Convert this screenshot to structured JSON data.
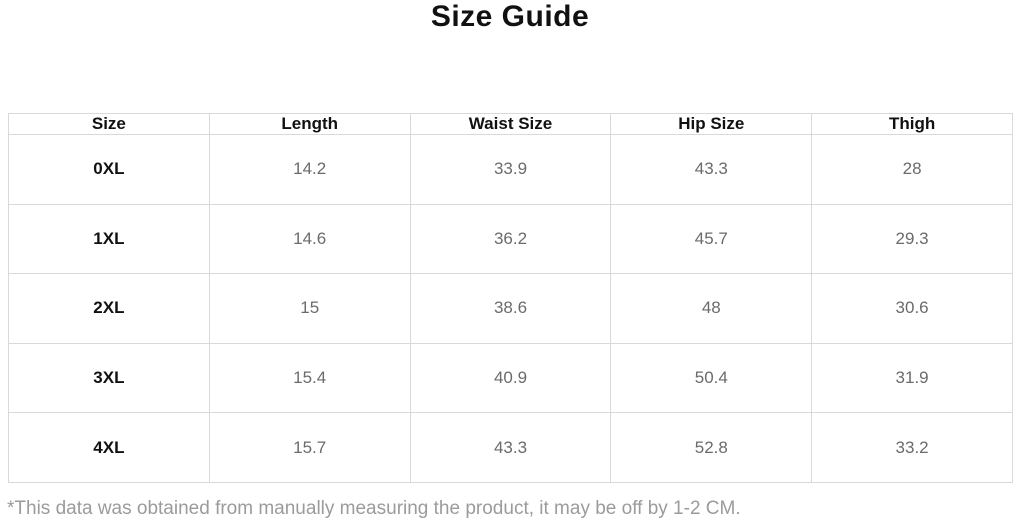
{
  "page": {
    "title": "Size Guide",
    "footnote": "*This data was obtained from manually measuring the product, it may be off by 1-2 CM."
  },
  "table": {
    "headers": [
      "Size",
      "Length",
      "Waist Size",
      "Hip Size",
      "Thigh"
    ],
    "rows": [
      {
        "size": "0XL",
        "values": [
          "14.2",
          "33.9",
          "43.3",
          "28"
        ]
      },
      {
        "size": "1XL",
        "values": [
          "14.6",
          "36.2",
          "45.7",
          "29.3"
        ]
      },
      {
        "size": "2XL",
        "values": [
          "15",
          "38.6",
          "48",
          "30.6"
        ]
      },
      {
        "size": "3XL",
        "values": [
          "15.4",
          "40.9",
          "50.4",
          "31.9"
        ]
      },
      {
        "size": "4XL",
        "values": [
          "15.7",
          "43.3",
          "52.8",
          "33.2"
        ]
      }
    ]
  },
  "colors": {
    "title_text": "#111111",
    "header_text": "#111111",
    "value_text": "#6b6b6b",
    "border": "#d9d9d9",
    "footnote_text": "#9b9b9b",
    "background": "#ffffff"
  },
  "chart_data": {
    "type": "table",
    "title": "Size Guide",
    "columns": [
      "Size",
      "Length",
      "Waist Size",
      "Hip Size",
      "Thigh"
    ],
    "rows": [
      [
        "0XL",
        14.2,
        33.9,
        43.3,
        28
      ],
      [
        "1XL",
        14.6,
        36.2,
        45.7,
        29.3
      ],
      [
        "2XL",
        15,
        38.6,
        48,
        30.6
      ],
      [
        "3XL",
        15.4,
        40.9,
        50.4,
        31.9
      ],
      [
        "4XL",
        15.7,
        43.3,
        52.8,
        33.2
      ]
    ],
    "footnote": "*This data was obtained from manually measuring the product, it may be off by 1-2 CM."
  }
}
